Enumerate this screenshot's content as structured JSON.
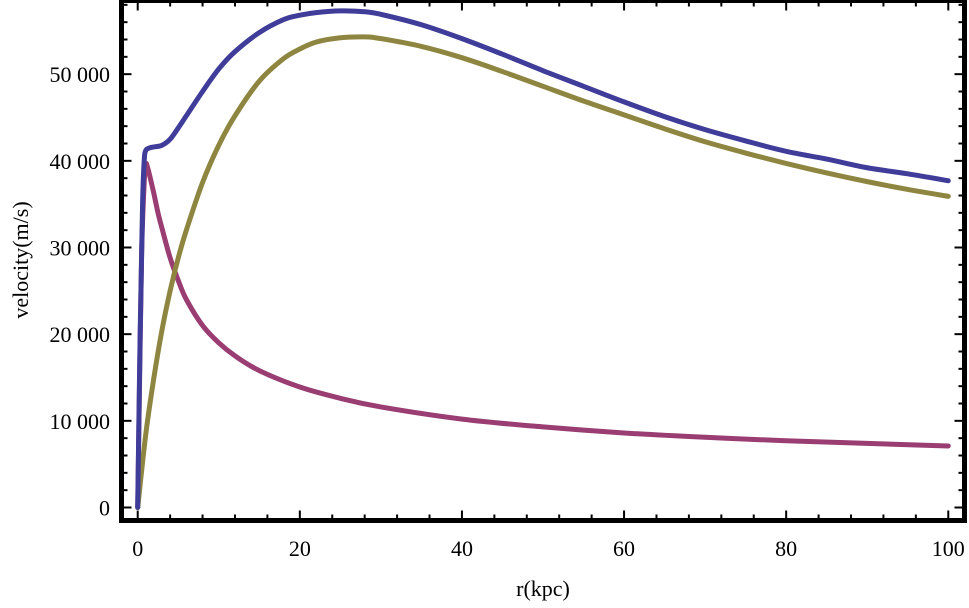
{
  "chart_data": {
    "type": "line",
    "xlabel": "r(kpc)",
    "ylabel": "velocity(m/s)",
    "xlim": [
      -2,
      102
    ],
    "ylim": [
      -1500,
      58500
    ],
    "x_ticks": [
      0,
      20,
      40,
      60,
      80,
      100
    ],
    "x_tick_labels": [
      "0",
      "20",
      "40",
      "60",
      "80",
      "100"
    ],
    "y_ticks": [
      0,
      10000,
      20000,
      30000,
      40000,
      50000
    ],
    "y_tick_labels": [
      "0",
      "10 000",
      "20 000",
      "30 000",
      "40 000",
      "50 000"
    ],
    "grid": false,
    "series": [
      {
        "color": "#3f3d99",
        "x": [
          0,
          0.3,
          0.6,
          0.8,
          1,
          1.5,
          2,
          3,
          4,
          5,
          6,
          8,
          10,
          12,
          15,
          18,
          20,
          22,
          25,
          28,
          30,
          35,
          40,
          45,
          50,
          55,
          60,
          65,
          70,
          75,
          80,
          85,
          90,
          95,
          100
        ],
        "y": [
          0,
          20000,
          35000,
          40000,
          41200,
          41500,
          41600,
          41800,
          42500,
          43800,
          45200,
          48000,
          50600,
          52600,
          54800,
          56300,
          56800,
          57100,
          57300,
          57200,
          56900,
          55700,
          54100,
          52300,
          50400,
          48600,
          46800,
          45100,
          43600,
          42300,
          41100,
          40200,
          39200,
          38500,
          37700
        ]
      },
      {
        "color": "#8e8640",
        "x": [
          0,
          1,
          2,
          3,
          4,
          5,
          6,
          8,
          10,
          12,
          15,
          18,
          20,
          22,
          25,
          28,
          30,
          35,
          40,
          45,
          50,
          55,
          60,
          65,
          70,
          75,
          80,
          85,
          90,
          95,
          100
        ],
        "y": [
          0,
          8500,
          15000,
          20500,
          25000,
          28800,
          32000,
          37500,
          41800,
          45200,
          49200,
          51800,
          52900,
          53700,
          54200,
          54300,
          54100,
          53200,
          51900,
          50300,
          48600,
          46900,
          45300,
          43700,
          42200,
          40900,
          39700,
          38600,
          37600,
          36700,
          35900
        ]
      },
      {
        "color": "#9a3d72",
        "x": [
          0,
          0.3,
          0.5,
          0.8,
          1,
          1.2,
          1.5,
          2,
          2.5,
          3,
          4,
          5,
          6,
          8,
          10,
          12,
          15,
          20,
          25,
          30,
          40,
          50,
          60,
          70,
          80,
          90,
          100
        ],
        "y": [
          0,
          19000,
          30000,
          37500,
          39600,
          39300,
          38200,
          36200,
          34000,
          32200,
          28800,
          26200,
          24000,
          21000,
          19000,
          17500,
          15800,
          13900,
          12600,
          11600,
          10200,
          9300,
          8600,
          8100,
          7700,
          7400,
          7100
        ]
      }
    ]
  }
}
